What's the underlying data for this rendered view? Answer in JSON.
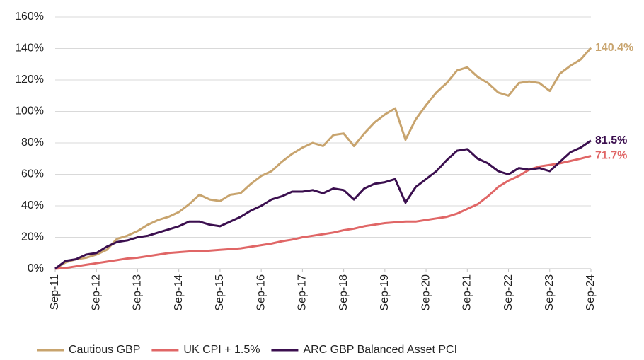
{
  "chart_data": {
    "type": "line",
    "categories": [
      "Sep-11",
      null,
      null,
      null,
      "Sep-12",
      null,
      null,
      null,
      "Sep-13",
      null,
      null,
      null,
      "Sep-14",
      null,
      null,
      null,
      "Sep-15",
      null,
      null,
      null,
      "Sep-16",
      null,
      null,
      null,
      "Sep-17",
      null,
      null,
      null,
      "Sep-18",
      null,
      null,
      null,
      "Sep-19",
      null,
      null,
      null,
      "Sep-20",
      null,
      null,
      null,
      "Sep-21",
      null,
      null,
      null,
      "Sep-22",
      null,
      null,
      null,
      "Sep-23",
      null,
      null,
      null,
      "Sep-24"
    ],
    "series": [
      {
        "name": "Cautious GBP",
        "color": "#c8a46e",
        "values": [
          0,
          4,
          6,
          7,
          9,
          12,
          19,
          21,
          24,
          28,
          31,
          33,
          36,
          41,
          47,
          44,
          43,
          47,
          48,
          54,
          59,
          62,
          68,
          73,
          77,
          80,
          78,
          85,
          86,
          78,
          86,
          93,
          98,
          102,
          82,
          95,
          104,
          112,
          118,
          126,
          128,
          122,
          118,
          112,
          110,
          118,
          119,
          118,
          113,
          124,
          129,
          133,
          140.4
        ],
        "value_labels": [
          null,
          null,
          null,
          null,
          null,
          null,
          null,
          null,
          null,
          null,
          null,
          null,
          null,
          null,
          null,
          null,
          null,
          null,
          null,
          null,
          null,
          null,
          null,
          null,
          null,
          null,
          null,
          null,
          null,
          null,
          null,
          null,
          null,
          null,
          null,
          null,
          null,
          null,
          null,
          null,
          null,
          null,
          null,
          null,
          null,
          null,
          null,
          null,
          null,
          null,
          null,
          null,
          "140.4%"
        ]
      },
      {
        "name": "UK CPI + 1.5%",
        "color": "#e06666",
        "values": [
          0,
          0.5,
          1.5,
          2.5,
          3.5,
          4.5,
          5.5,
          6.5,
          7,
          8,
          9,
          10,
          10.5,
          11,
          11,
          11.5,
          12,
          12.5,
          13,
          14,
          15,
          16,
          17.5,
          18.5,
          20,
          21,
          22,
          23,
          24.5,
          25.5,
          27,
          28,
          29,
          29.5,
          30,
          30,
          31,
          32,
          33,
          35,
          38,
          41,
          46,
          52,
          56,
          59,
          63,
          65,
          66,
          67,
          68.5,
          70,
          71.7
        ],
        "value_labels": [
          null,
          null,
          null,
          null,
          null,
          null,
          null,
          null,
          null,
          null,
          null,
          null,
          null,
          null,
          null,
          null,
          null,
          null,
          null,
          null,
          null,
          null,
          null,
          null,
          null,
          null,
          null,
          null,
          null,
          null,
          null,
          null,
          null,
          null,
          null,
          null,
          null,
          null,
          null,
          null,
          null,
          null,
          null,
          null,
          null,
          null,
          null,
          null,
          null,
          null,
          null,
          null,
          "71.7%"
        ]
      },
      {
        "name": "ARC GBP Balanced Asset PCI",
        "color": "#3b0f4f",
        "values": [
          0,
          5,
          6,
          9,
          10,
          14,
          17,
          18,
          20,
          21,
          23,
          25,
          27,
          30,
          30,
          28,
          27,
          30,
          33,
          37,
          40,
          44,
          46,
          49,
          49,
          50,
          48,
          51,
          50,
          44,
          51,
          54,
          55,
          57,
          42,
          52,
          57,
          62,
          69,
          75,
          76,
          70,
          67,
          62,
          60,
          64,
          63,
          64,
          62,
          68,
          74,
          77,
          81.5
        ],
        "value_labels": [
          null,
          null,
          null,
          null,
          null,
          null,
          null,
          null,
          null,
          null,
          null,
          null,
          null,
          null,
          null,
          null,
          null,
          null,
          null,
          null,
          null,
          null,
          null,
          null,
          null,
          null,
          null,
          null,
          null,
          null,
          null,
          null,
          null,
          null,
          null,
          null,
          null,
          null,
          null,
          null,
          null,
          null,
          null,
          null,
          null,
          null,
          null,
          null,
          null,
          null,
          null,
          null,
          "81.5%"
        ]
      }
    ],
    "ylim": [
      0,
      160
    ],
    "yticks": [
      {
        "value": 0,
        "label": "0%"
      },
      {
        "value": 20,
        "label": "20%"
      },
      {
        "value": 40,
        "label": "40%"
      },
      {
        "value": 60,
        "label": "60%"
      },
      {
        "value": 80,
        "label": "80%"
      },
      {
        "value": 100,
        "label": "100%"
      },
      {
        "value": 120,
        "label": "120%"
      },
      {
        "value": 140,
        "label": "140%"
      },
      {
        "value": 160,
        "label": "160%"
      }
    ],
    "grid": true,
    "legend": "bottom"
  }
}
